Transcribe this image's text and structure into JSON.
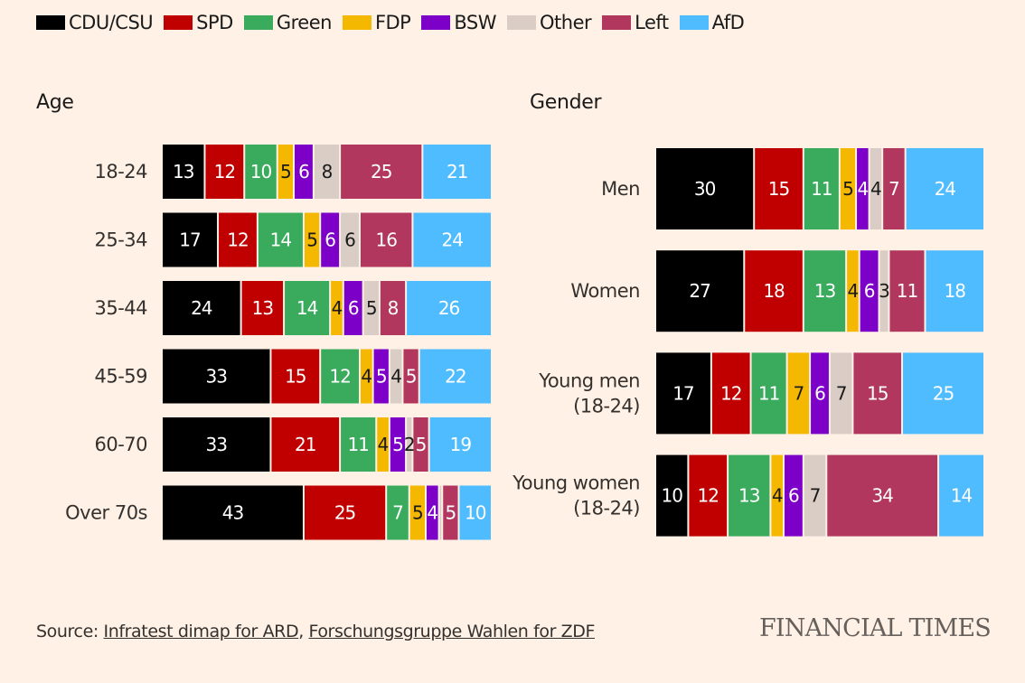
{
  "legend": [
    {
      "name": "CDU/CSU",
      "color": "#000000"
    },
    {
      "name": "SPD",
      "color": "#c00000"
    },
    {
      "name": "Green",
      "color": "#3aaa5c"
    },
    {
      "name": "FDP",
      "color": "#f5b800"
    },
    {
      "name": "BSW",
      "color": "#7d00c8"
    },
    {
      "name": "Other",
      "color": "#d9cdc6"
    },
    {
      "name": "Left",
      "color": "#b2375e"
    },
    {
      "name": "AfD",
      "color": "#4fbcff"
    }
  ],
  "source": {
    "prefix": "Source: ",
    "link1": "Infratest dimap for ARD",
    "sep": ", ",
    "link2": "Forschungsgruppe Wahlen for ZDF"
  },
  "publisher": "FINANCIAL TIMES",
  "chart_data": [
    {
      "type": "bar",
      "stacked": true,
      "orientation": "horizontal",
      "title": "Age",
      "categories": [
        "18-24",
        "25-34",
        "35-44",
        "45-59",
        "60-70",
        "Over 70s"
      ],
      "series": [
        {
          "name": "CDU/CSU",
          "values": [
            13,
            17,
            24,
            33,
            33,
            43
          ]
        },
        {
          "name": "SPD",
          "values": [
            12,
            12,
            13,
            15,
            21,
            25
          ]
        },
        {
          "name": "Green",
          "values": [
            10,
            14,
            14,
            12,
            11,
            7
          ]
        },
        {
          "name": "FDP",
          "values": [
            5,
            5,
            4,
            4,
            4,
            5
          ]
        },
        {
          "name": "BSW",
          "values": [
            6,
            6,
            6,
            5,
            5,
            4
          ]
        },
        {
          "name": "Other",
          "values": [
            8,
            6,
            5,
            4,
            2,
            1
          ]
        },
        {
          "name": "Left",
          "values": [
            25,
            16,
            8,
            5,
            5,
            5
          ]
        },
        {
          "name": "AfD",
          "values": [
            21,
            24,
            26,
            22,
            19,
            10
          ]
        }
      ],
      "value_labels_shown": [
        [
          true,
          true,
          true,
          true,
          true,
          true,
          true,
          true
        ],
        [
          true,
          true,
          true,
          true,
          true,
          true,
          true,
          true
        ],
        [
          true,
          true,
          true,
          true,
          true,
          true,
          true,
          true
        ],
        [
          true,
          true,
          true,
          true,
          true,
          true,
          true,
          true
        ],
        [
          true,
          true,
          true,
          true,
          true,
          true,
          true,
          true
        ],
        [
          true,
          true,
          true,
          true,
          true,
          false,
          true,
          true
        ]
      ]
    },
    {
      "type": "bar",
      "stacked": true,
      "orientation": "horizontal",
      "title": "Gender",
      "categories": [
        [
          "Men"
        ],
        [
          "Women"
        ],
        [
          "Young men",
          "(18-24)"
        ],
        [
          "Young women",
          "(18-24)"
        ]
      ],
      "series": [
        {
          "name": "CDU/CSU",
          "values": [
            30,
            27,
            17,
            10
          ]
        },
        {
          "name": "SPD",
          "values": [
            15,
            18,
            12,
            12
          ]
        },
        {
          "name": "Green",
          "values": [
            11,
            13,
            11,
            13
          ]
        },
        {
          "name": "FDP",
          "values": [
            5,
            4,
            7,
            4
          ]
        },
        {
          "name": "BSW",
          "values": [
            4,
            6,
            6,
            6
          ]
        },
        {
          "name": "Other",
          "values": [
            4,
            3,
            7,
            7
          ]
        },
        {
          "name": "Left",
          "values": [
            7,
            11,
            15,
            34
          ]
        },
        {
          "name": "AfD",
          "values": [
            24,
            18,
            25,
            14
          ]
        }
      ]
    }
  ]
}
